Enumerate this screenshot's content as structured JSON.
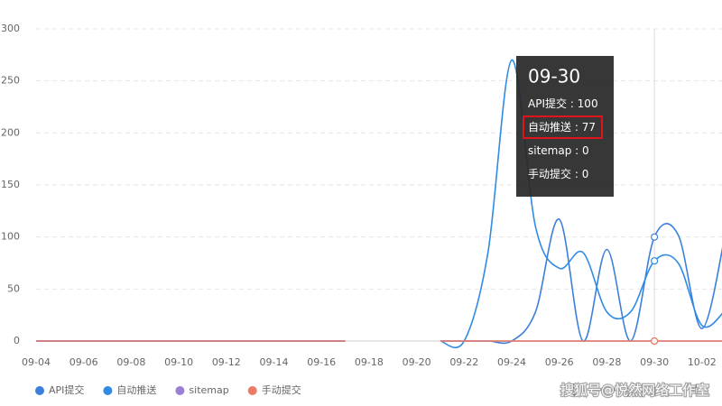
{
  "chart_data": {
    "type": "line",
    "categories": [
      "09-04",
      null,
      "09-06",
      null,
      "09-08",
      null,
      "09-10",
      null,
      "09-12",
      null,
      "09-14",
      null,
      "09-16",
      null,
      "09-18",
      null,
      "09-20",
      null,
      "09-22",
      null,
      "09-24",
      null,
      "09-26",
      null,
      "09-28",
      null,
      "09-30",
      null,
      "10-02",
      null
    ],
    "series": [
      {
        "name": "API提交",
        "color": "#3d7fdc",
        "values": [
          0,
          0,
          0,
          0,
          0,
          0,
          0,
          0,
          0,
          0,
          0,
          0,
          0,
          0,
          null,
          null,
          null,
          0,
          0,
          0,
          0,
          28,
          117,
          0,
          88,
          0,
          100,
          102,
          12,
          105
        ]
      },
      {
        "name": "自动推送",
        "color": "#2f8be6",
        "values": [
          0,
          0,
          0,
          0,
          0,
          0,
          0,
          0,
          0,
          0,
          0,
          0,
          0,
          0,
          null,
          null,
          null,
          0,
          0,
          85,
          270,
          110,
          70,
          85,
          28,
          28,
          77,
          75,
          15,
          30
        ]
      },
      {
        "name": "sitemap",
        "color": "#9a7fd6",
        "values": [
          0,
          0,
          0,
          0,
          0,
          0,
          0,
          0,
          0,
          0,
          0,
          0,
          0,
          0,
          null,
          null,
          null,
          0,
          0,
          0,
          0,
          0,
          0,
          0,
          0,
          0,
          0,
          0,
          0,
          0
        ]
      },
      {
        "name": "手动提交",
        "color": "#ea7c66",
        "values": [
          0,
          0,
          0,
          0,
          0,
          0,
          0,
          0,
          0,
          0,
          0,
          0,
          0,
          0,
          null,
          null,
          null,
          0,
          0,
          0,
          0,
          0,
          0,
          0,
          0,
          0,
          0,
          0,
          0,
          0
        ]
      }
    ],
    "ylim": [
      0,
      300
    ],
    "yticks": [
      0,
      50,
      100,
      150,
      200,
      250,
      300
    ],
    "grid": true,
    "tooltip_index": 26,
    "tooltip_separator": " : ",
    "tooltip_highlight": 1,
    "legend": "bottom-left",
    "watermark": "搜狐号@悦然网络工作室"
  }
}
